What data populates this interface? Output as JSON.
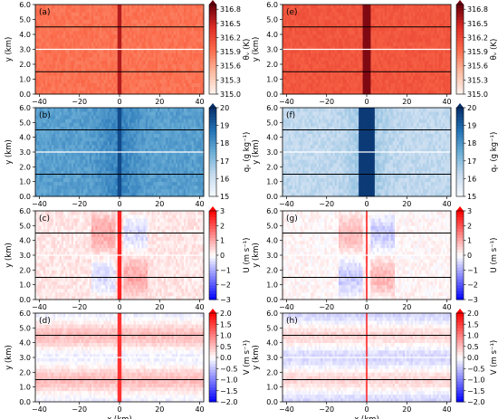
{
  "chart_data": [
    {
      "panel_label": "(a)",
      "field": "theta_v",
      "cbar_label": "θᵥ (K)",
      "cbar_ticks": [
        "316.8",
        "316.5",
        "316.2",
        "315.9",
        "315.6",
        "315.3",
        "315.0"
      ],
      "vmin": 315.0,
      "vmax": 316.9,
      "colormap": "Reds",
      "xlabel": "",
      "ylabel": "y (km)",
      "x_ticks": [
        "−40",
        "−20",
        "0",
        "20",
        "40"
      ],
      "y_ticks": [
        "0.0",
        "1.0",
        "2.0",
        "3.0",
        "4.0",
        "5.0",
        "6.0"
      ],
      "xlim": [
        -42,
        42
      ],
      "ylim": [
        0,
        6
      ],
      "black_lines_y": [
        1.5,
        4.5
      ],
      "white_line_y": 3.0,
      "background_value": 315.9,
      "center_band": {
        "x": 0,
        "value": 316.6,
        "width_km": 3
      }
    },
    {
      "panel_label": "(e)",
      "field": "theta_v",
      "cbar_label": "θᵥ (K)",
      "cbar_ticks": [
        "316.8",
        "316.5",
        "316.2",
        "315.9",
        "315.6",
        "315.3",
        "315.0"
      ],
      "vmin": 315.0,
      "vmax": 316.9,
      "colormap": "Reds",
      "xlabel": "",
      "ylabel": "y (km)",
      "x_ticks": [
        "−40",
        "−20",
        "0",
        "20",
        "40"
      ],
      "y_ticks": [
        "0.0",
        "1.0",
        "2.0",
        "3.0",
        "4.0",
        "5.0",
        "6.0"
      ],
      "xlim": [
        -42,
        42
      ],
      "ylim": [
        0,
        6
      ],
      "black_lines_y": [
        1.5,
        4.5
      ],
      "white_line_y": 3.0,
      "background_value": 316.1,
      "center_band": {
        "x": 0,
        "value": 316.8,
        "width_km": 4
      }
    },
    {
      "panel_label": "(b)",
      "field": "q_v",
      "cbar_label": "qᵥ (g kg⁻¹)",
      "cbar_ticks": [
        "20",
        "19",
        "18",
        "17",
        "16",
        "15"
      ],
      "vmin": 15,
      "vmax": 20,
      "colormap": "Blues",
      "xlabel": "",
      "ylabel": "y (km)",
      "x_ticks": [
        "−40",
        "−20",
        "0",
        "20",
        "40"
      ],
      "y_ticks": [
        "0.0",
        "1.0",
        "2.0",
        "3.0",
        "4.0",
        "5.0",
        "6.0"
      ],
      "xlim": [
        -42,
        42
      ],
      "ylim": [
        0,
        6
      ],
      "black_lines_y": [
        1.5,
        4.5
      ],
      "white_line_y": 3.0,
      "background_value": 17.8,
      "center_band": {
        "x": 0,
        "value": 19.5,
        "width_km": 3
      }
    },
    {
      "panel_label": "(f)",
      "field": "q_v",
      "cbar_label": "qᵥ (g kg⁻¹)",
      "cbar_ticks": [
        "20",
        "19",
        "18",
        "17",
        "16",
        "15"
      ],
      "vmin": 15,
      "vmax": 20,
      "colormap": "Blues",
      "xlabel": "",
      "ylabel": "y (km)",
      "x_ticks": [
        "−40",
        "−20",
        "0",
        "20",
        "40"
      ],
      "y_ticks": [
        "0.0",
        "1.0",
        "2.0",
        "3.0",
        "4.0",
        "5.0",
        "6.0"
      ],
      "xlim": [
        -42,
        42
      ],
      "ylim": [
        0,
        6
      ],
      "black_lines_y": [
        1.5,
        4.5
      ],
      "white_line_y": 3.0,
      "background_value": 16.3,
      "center_band": {
        "x": 0,
        "value": 19.8,
        "width_km": 8
      }
    },
    {
      "panel_label": "(c)",
      "field": "U",
      "cbar_label": "U (m s⁻¹)",
      "cbar_ticks": [
        "3",
        "2",
        "1",
        "0",
        "−1",
        "−2",
        "−3"
      ],
      "vmin": -3,
      "vmax": 3,
      "colormap": "bwr",
      "xlabel": "",
      "ylabel": "y (km)",
      "x_ticks": [
        "−40",
        "−20",
        "0",
        "20",
        "40"
      ],
      "y_ticks": [
        "0.0",
        "1.0",
        "2.0",
        "3.0",
        "4.0",
        "5.0",
        "6.0"
      ],
      "xlim": [
        -42,
        42
      ],
      "ylim": [
        0,
        6
      ],
      "black_lines_y": [
        1.5,
        4.5
      ],
      "white_line_y": 3.0,
      "background_value": 0.3,
      "center_band": {
        "x": 0,
        "value": 2.6,
        "width_km": 2
      }
    },
    {
      "panel_label": "(g)",
      "field": "U",
      "cbar_label": "U (m s⁻¹)",
      "cbar_ticks": [
        "3",
        "2",
        "1",
        "0",
        "−1",
        "−2",
        "−3"
      ],
      "vmin": -3,
      "vmax": 3,
      "colormap": "bwr",
      "xlabel": "",
      "ylabel": "y (km)",
      "x_ticks": [
        "−40",
        "−20",
        "0",
        "20",
        "40"
      ],
      "y_ticks": [
        "0.0",
        "1.0",
        "2.0",
        "3.0",
        "4.0",
        "5.0",
        "6.0"
      ],
      "xlim": [
        -42,
        42
      ],
      "ylim": [
        0,
        6
      ],
      "black_lines_y": [
        1.5,
        4.5
      ],
      "white_line_y": 3.0,
      "background_value": 0.1,
      "center_band": {
        "x": 0,
        "value": 2.8,
        "width_km": 1
      }
    },
    {
      "panel_label": "(d)",
      "field": "V",
      "cbar_label": "V (m s⁻¹)",
      "cbar_ticks": [
        "2.0",
        "1.5",
        "1.0",
        "0.5",
        "0.0",
        "−0.5",
        "−1.0",
        "−1.5",
        "−2.0"
      ],
      "vmin": -2,
      "vmax": 2,
      "colormap": "bwr",
      "xlabel": "x (km)",
      "ylabel": "y (km)",
      "x_ticks": [
        "−40",
        "−20",
        "0",
        "20",
        "40"
      ],
      "y_ticks": [
        "0.0",
        "1.0",
        "2.0",
        "3.0",
        "4.0",
        "5.0",
        "6.0"
      ],
      "xlim": [
        -42,
        42
      ],
      "ylim": [
        0,
        6
      ],
      "black_lines_y": [
        1.5,
        4.5
      ],
      "white_line_y": 3.0,
      "background_value": 0.2,
      "center_band": {
        "x": 0,
        "value": 1.6,
        "width_km": 3
      }
    },
    {
      "panel_label": "(h)",
      "field": "V",
      "cbar_label": "V (m s⁻¹)",
      "cbar_ticks": [
        "2.0",
        "1.5",
        "1.0",
        "0.5",
        "0.0",
        "−0.5",
        "−1.0",
        "−1.5",
        "−2.0"
      ],
      "vmin": -2,
      "vmax": 2,
      "colormap": "bwr",
      "xlabel": "x (km)",
      "ylabel": "y (km)",
      "x_ticks": [
        "−40",
        "−20",
        "0",
        "20",
        "40"
      ],
      "y_ticks": [
        "0.0",
        "1.0",
        "2.0",
        "3.0",
        "4.0",
        "5.0",
        "6.0"
      ],
      "xlim": [
        -42,
        42
      ],
      "ylim": [
        0,
        6
      ],
      "black_lines_y": [
        1.5,
        4.5
      ],
      "white_line_y": 3.0,
      "background_value": 0.0,
      "center_band": {
        "x": 0,
        "value": 1.8,
        "width_km": 1
      }
    }
  ]
}
